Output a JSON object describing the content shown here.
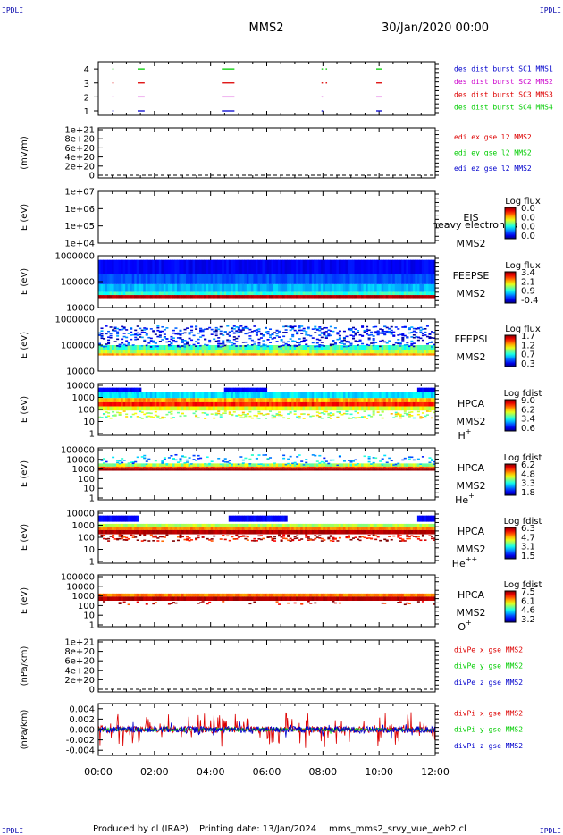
{
  "corner_label": "IPDLI",
  "spacecraft": "MMS2",
  "date_label": "30/Jan/2020 00:00",
  "footer": {
    "produced_by": "Produced by cl (IRAP)",
    "printing_date": "Printing date: 13/Jan/2024",
    "filename": "mms_mms2_srvy_vue_web2.cl"
  },
  "time_axis": {
    "range_hours": [
      0,
      12
    ],
    "tick_labels": [
      "00:00",
      "02:00",
      "04:00",
      "06:00",
      "08:00",
      "10:00",
      "12:00"
    ]
  },
  "chart_data": [
    {
      "type": "timeline",
      "panel": "burst",
      "yticks": [
        "1",
        "2",
        "3",
        "4"
      ],
      "legend": [
        {
          "text": "des dist burst SC1 MMS1",
          "color": "#0000cc"
        },
        {
          "text": "des dist burst SC2 MMS2",
          "color": "#cc00cc"
        },
        {
          "text": "des dist burst SC3 MMS3",
          "color": "#dd0000"
        },
        {
          "text": "des dist burst SC4 MMS4",
          "color": "#00cc00"
        }
      ],
      "series": [
        {
          "level": 1,
          "color": "#0000cc",
          "intervals": [
            [
              0.5,
              0.55
            ],
            [
              1.4,
              1.65
            ],
            [
              4.4,
              4.85
            ],
            [
              7.95,
              8.0
            ],
            [
              9.9,
              10.1
            ]
          ]
        },
        {
          "level": 2,
          "color": "#cc00cc",
          "intervals": [
            [
              0.5,
              0.55
            ],
            [
              1.4,
              1.65
            ],
            [
              4.4,
              4.85
            ],
            [
              7.95,
              8.0
            ],
            [
              9.9,
              10.1
            ]
          ]
        },
        {
          "level": 3,
          "color": "#dd0000",
          "intervals": [
            [
              0.5,
              0.55
            ],
            [
              1.4,
              1.65
            ],
            [
              4.4,
              4.85
            ],
            [
              7.95,
              8.0
            ],
            [
              8.1,
              8.15
            ],
            [
              9.9,
              10.1
            ]
          ]
        },
        {
          "level": 4,
          "color": "#00cc00",
          "intervals": [
            [
              0.5,
              0.55
            ],
            [
              1.4,
              1.65
            ],
            [
              4.4,
              4.85
            ],
            [
              7.95,
              8.0
            ],
            [
              8.1,
              8.15
            ],
            [
              9.9,
              10.1
            ]
          ]
        }
      ]
    },
    {
      "type": "line",
      "panel": "edi",
      "ylabel": "(mV/m)",
      "yticks": [
        "1e+21",
        "8e+20",
        "6e+20",
        "4e+20",
        "2e+20",
        "0"
      ],
      "legend": [
        {
          "text": "edi ex gse l2 MMS2",
          "color": "#dd0000"
        },
        {
          "text": "edi ey gse l2 MMS2",
          "color": "#00cc00"
        },
        {
          "text": "edi ez gse l2 MMS2",
          "color": "#0000cc"
        }
      ]
    },
    {
      "type": "heatmap",
      "panel": "eis",
      "ylabel": "E (eV)",
      "yticks": [
        "1e+07",
        "1e+06",
        "1e+05",
        "1e+04"
      ],
      "instrument": "EIS",
      "overlay_text": "heavy electron to",
      "spacecraft": "MMS2",
      "colorbar_title": "Log flux",
      "colorbar_ticks": [
        "0.0",
        "0.0",
        "0.0",
        "0.0"
      ]
    },
    {
      "type": "heatmap",
      "panel": "feepse",
      "ylabel": "E (eV)",
      "yticks": [
        "1000000",
        "100000",
        "10000"
      ],
      "instrument": "FEEPSE",
      "spacecraft": "MMS2",
      "colorbar_title": "Log flux",
      "colorbar_ticks": [
        "3.4",
        "2.1",
        "0.9",
        "-0.4"
      ]
    },
    {
      "type": "heatmap",
      "panel": "feepsi",
      "ylabel": "E (eV)",
      "yticks": [
        "1000000",
        "100000",
        "10000"
      ],
      "instrument": "FEEPSI",
      "spacecraft": "MMS2",
      "colorbar_title": "Log flux",
      "colorbar_ticks": [
        "1.7",
        "1.2",
        "0.7",
        "0.3"
      ]
    },
    {
      "type": "heatmap",
      "panel": "hpca_h",
      "ylabel": "E (eV)",
      "yticks": [
        "10000",
        "1000",
        "100",
        "10",
        "1"
      ],
      "instrument": "HPCA",
      "spacecraft": "MMS2",
      "species": "H",
      "species_sup": "+",
      "colorbar_title": "Log fdist",
      "colorbar_ticks": [
        "9.0",
        "6.2",
        "3.4",
        "0.6"
      ]
    },
    {
      "type": "heatmap",
      "panel": "hpca_he1",
      "ylabel": "E (eV)",
      "yticks": [
        "100000",
        "10000",
        "1000",
        "100",
        "10",
        "1"
      ],
      "instrument": "HPCA",
      "spacecraft": "MMS2",
      "species": "He",
      "species_sup": "+",
      "colorbar_title": "Log fdist",
      "colorbar_ticks": [
        "6.2",
        "4.8",
        "3.3",
        "1.8"
      ]
    },
    {
      "type": "heatmap",
      "panel": "hpca_he2",
      "ylabel": "E (eV)",
      "yticks": [
        "10000",
        "1000",
        "100",
        "10",
        "1"
      ],
      "instrument": "HPCA",
      "spacecraft": "MMS2",
      "species": "He",
      "species_sup": "++",
      "colorbar_title": "Log fdist",
      "colorbar_ticks": [
        "6.3",
        "4.7",
        "3.1",
        "1.5"
      ]
    },
    {
      "type": "heatmap",
      "panel": "hpca_o",
      "ylabel": "E (eV)",
      "yticks": [
        "100000",
        "10000",
        "1000",
        "100",
        "10",
        "1"
      ],
      "instrument": "HPCA",
      "spacecraft": "MMS2",
      "species": "O",
      "species_sup": "+",
      "colorbar_title": "Log fdist",
      "colorbar_ticks": [
        "7.5",
        "6.1",
        "4.6",
        "3.2"
      ]
    },
    {
      "type": "line",
      "panel": "divpe",
      "ylabel": "(nPa/km)",
      "yticks": [
        "1e+21",
        "8e+20",
        "6e+20",
        "4e+20",
        "2e+20",
        "0"
      ],
      "legend": [
        {
          "text": "divPe x gse MMS2",
          "color": "#dd0000"
        },
        {
          "text": "divPe y gse MMS2",
          "color": "#00cc00"
        },
        {
          "text": "divPe z gse MMS2",
          "color": "#0000cc"
        }
      ]
    },
    {
      "type": "line",
      "panel": "divpi",
      "ylabel": "(nPa/km)",
      "yticks": [
        "0.004",
        "0.002",
        "0.000",
        "-0.002",
        "-0.004"
      ],
      "ylim": [
        -0.005,
        0.005
      ],
      "legend": [
        {
          "text": "divPi x gse MMS2",
          "color": "#dd0000"
        },
        {
          "text": "divPi y gse MMS2",
          "color": "#00cc00"
        },
        {
          "text": "divPi z gse MMS2",
          "color": "#0000cc"
        }
      ]
    }
  ]
}
